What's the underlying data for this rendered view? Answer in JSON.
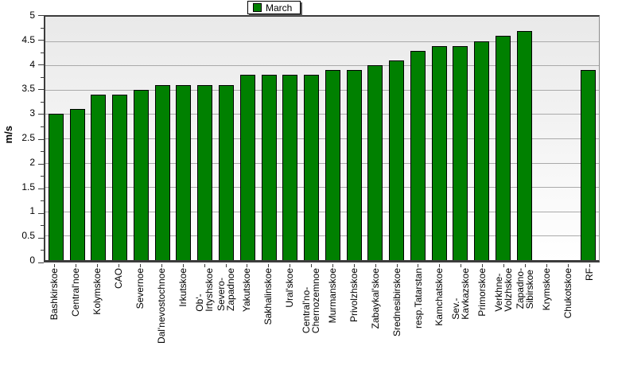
{
  "chart_data": {
    "type": "bar",
    "title": "",
    "series_name": "March",
    "legend_position": "top-center",
    "ylabel": "m/s",
    "ylim": [
      0,
      5
    ],
    "ytick_step": 0.5,
    "yminor_step": 0.25,
    "grid": true,
    "ytick_labels": [
      "5",
      "4.5",
      "4",
      "3.5",
      "3",
      "2.5",
      "2",
      "1.5",
      "1",
      "0.5",
      "0"
    ],
    "bars": [
      {
        "label": "Bashkirskoe",
        "lines": [
          "Bashkirskoe"
        ],
        "value": 3.0
      },
      {
        "label": "Central'noe",
        "lines": [
          "Central'noe"
        ],
        "value": 3.1
      },
      {
        "label": "Kolymskoe",
        "lines": [
          "Kolymskoe"
        ],
        "value": 3.4
      },
      {
        "label": "CAO",
        "lines": [
          "CAO"
        ],
        "value": 3.4
      },
      {
        "label": "Severnoe",
        "lines": [
          "Severnoe"
        ],
        "value": 3.5
      },
      {
        "label": "Dal'nevostochnoe",
        "lines": [
          "Dal'nevostochnoe"
        ],
        "value": 3.6
      },
      {
        "label": "Irkutskoe",
        "lines": [
          "Irkutskoe"
        ],
        "value": 3.6
      },
      {
        "label": "Ob'-Irtyshskoe",
        "lines": [
          "Ob'-",
          "Irtyshskoe"
        ],
        "value": 3.6
      },
      {
        "label": "Severo-Zapadnoe",
        "lines": [
          "Severo-",
          "Zapadnoe"
        ],
        "value": 3.6
      },
      {
        "label": "Yakutskoe",
        "lines": [
          "Yakutskoe"
        ],
        "value": 3.8
      },
      {
        "label": "Sakhalinskoe",
        "lines": [
          "Sakhalinskoe"
        ],
        "value": 3.8
      },
      {
        "label": "Ural'skoe",
        "lines": [
          "Ural'skoe"
        ],
        "value": 3.8
      },
      {
        "label": "Central'no-Chernozemnoe",
        "lines": [
          "Central'no-",
          "Chernozemnoe"
        ],
        "value": 3.8
      },
      {
        "label": "Murmanskoe",
        "lines": [
          "Murmanskoe"
        ],
        "value": 3.9
      },
      {
        "label": "Privolzhskoe",
        "lines": [
          "Privolzhskoe"
        ],
        "value": 3.9
      },
      {
        "label": "Zabaykal'skoe",
        "lines": [
          "Zabaykal'skoe"
        ],
        "value": 4.0
      },
      {
        "label": "Srednesibirskoe",
        "lines": [
          "Srednesibirskoe"
        ],
        "value": 4.1
      },
      {
        "label": "resp.Tatarstan",
        "lines": [
          "resp.Tatarstan"
        ],
        "value": 4.3
      },
      {
        "label": "Kamchatskoe",
        "lines": [
          "Kamchatskoe"
        ],
        "value": 4.4
      },
      {
        "label": "Sev.-Kavkazskoe",
        "lines": [
          "Sev.-",
          "Kavkazskoe"
        ],
        "value": 4.4
      },
      {
        "label": "Primorskoe",
        "lines": [
          "Primorskoe"
        ],
        "value": 4.5
      },
      {
        "label": "Verkhne-Volzhskoe",
        "lines": [
          "Verkhne-",
          "Volzhskoe"
        ],
        "value": 4.6
      },
      {
        "label": "Zapadno-Sibirskoe",
        "lines": [
          "Zapadno-",
          "Sibirskoe"
        ],
        "value": 4.7
      },
      {
        "label": "Krymskoe",
        "lines": [
          "Krymskoe"
        ],
        "value": null
      },
      {
        "label": "Chukotskoe",
        "lines": [
          "Chukotskoe"
        ],
        "value": null
      },
      {
        "label": "RF",
        "lines": [
          "RF"
        ],
        "value": 3.9
      }
    ],
    "colors": {
      "bar_fill": "#008000",
      "bar_border": "#000000",
      "plot_bg_top": "#e9e9e9",
      "plot_bg_bottom": "#ffffff",
      "gridline": "#aaaaaa",
      "axis": "#3c3c3c",
      "text": "#000000"
    }
  }
}
